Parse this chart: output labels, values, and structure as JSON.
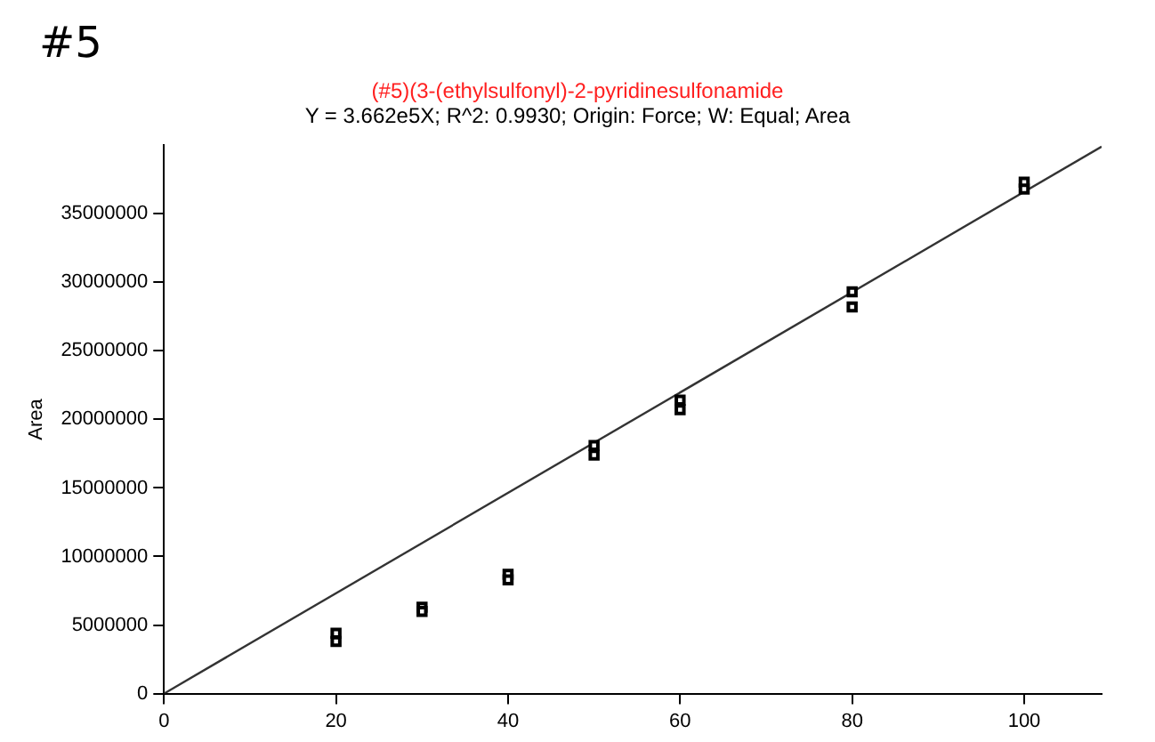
{
  "chart_data": {
    "type": "scatter",
    "title": "(#5)(3-(ethylsulfonyl)-2-pyridinesulfonamide",
    "subtitle": "Y = 3.662e5X; R^2: 0.9930; Origin: Force; W: Equal; Area",
    "ylabel": "Area",
    "annotations": [
      "#5"
    ],
    "xlim": [
      0,
      109
    ],
    "xticks": [
      0,
      20,
      40,
      60,
      80,
      100
    ],
    "ylim": [
      0,
      40000000
    ],
    "yticks": [
      0,
      5000000,
      10000000,
      15000000,
      20000000,
      25000000,
      30000000,
      35000000
    ],
    "grid": false,
    "legend": false,
    "marker": "square",
    "series": [
      {
        "type": "scatter",
        "color": "#000000",
        "x": [
          20,
          20,
          30,
          30,
          40,
          40,
          50,
          50,
          60,
          60,
          80,
          80,
          100,
          100
        ],
        "values": [
          4400000,
          3800000,
          6300000,
          6000000,
          8700000,
          8300000,
          18100000,
          17400000,
          21400000,
          20700000,
          29300000,
          28200000,
          37300000,
          36800000
        ]
      },
      {
        "type": "line",
        "color": "#333333",
        "x": [
          0,
          109
        ],
        "values": [
          0,
          39900000
        ],
        "marker": "none"
      }
    ]
  }
}
